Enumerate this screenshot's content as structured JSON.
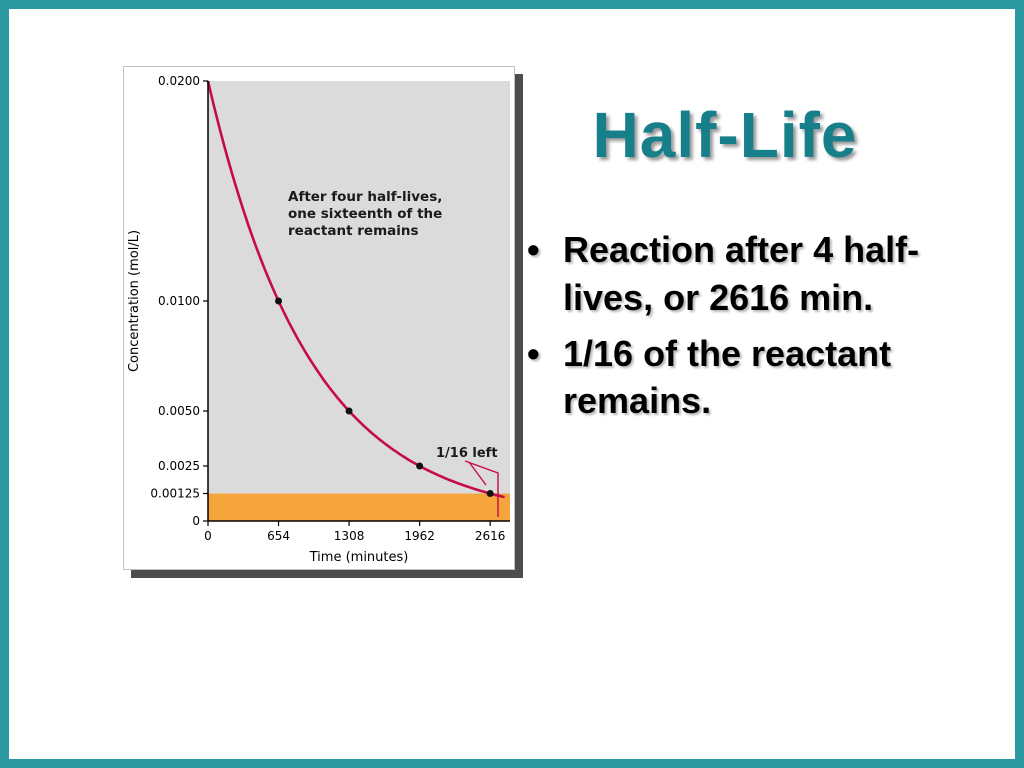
{
  "title": "Half-Life",
  "title_color": "#177F8A",
  "frame_color": "#2B9AA0",
  "bullet_glyph": "•",
  "bullets": [
    "Reaction after 4 half-lives, or 2616 min.",
    "1/16 of the reactant remains."
  ],
  "chart_data": {
    "type": "line",
    "title": "",
    "xlabel": "Time (minutes)",
    "ylabel": "Concentration (mol/L)",
    "x_ticks": [
      0,
      654,
      1308,
      1962,
      2616
    ],
    "x_tick_labels": [
      "0",
      "654",
      "1308",
      "1962",
      "2616"
    ],
    "y_ticks": [
      0.02,
      0.01,
      0.005,
      0.0025,
      0.00125,
      0
    ],
    "y_tick_labels": [
      "0.0200",
      "0.0100",
      "0.0050",
      "0.0025",
      "0.00125",
      "0"
    ],
    "xlim": [
      0,
      2800
    ],
    "ylim": [
      0,
      0.02
    ],
    "half_life_minutes": 654,
    "initial_concentration": 0.02,
    "points": [
      {
        "x": 0,
        "y": 0.02
      },
      {
        "x": 654,
        "y": 0.01
      },
      {
        "x": 1308,
        "y": 0.005
      },
      {
        "x": 1962,
        "y": 0.0025
      },
      {
        "x": 2616,
        "y": 0.00125
      }
    ],
    "annotation_lines": [
      "After four half-lives,",
      "one sixteenth of the",
      "reactant remains"
    ],
    "endpoint_label": "1/16 left",
    "highlight_band": {
      "y_from": 0,
      "y_to": 0.00125,
      "color": "#F6A53C"
    },
    "curve_color": "#C60C46",
    "plot_bg": "#DBDBDB",
    "grid": false,
    "legend": "none"
  }
}
